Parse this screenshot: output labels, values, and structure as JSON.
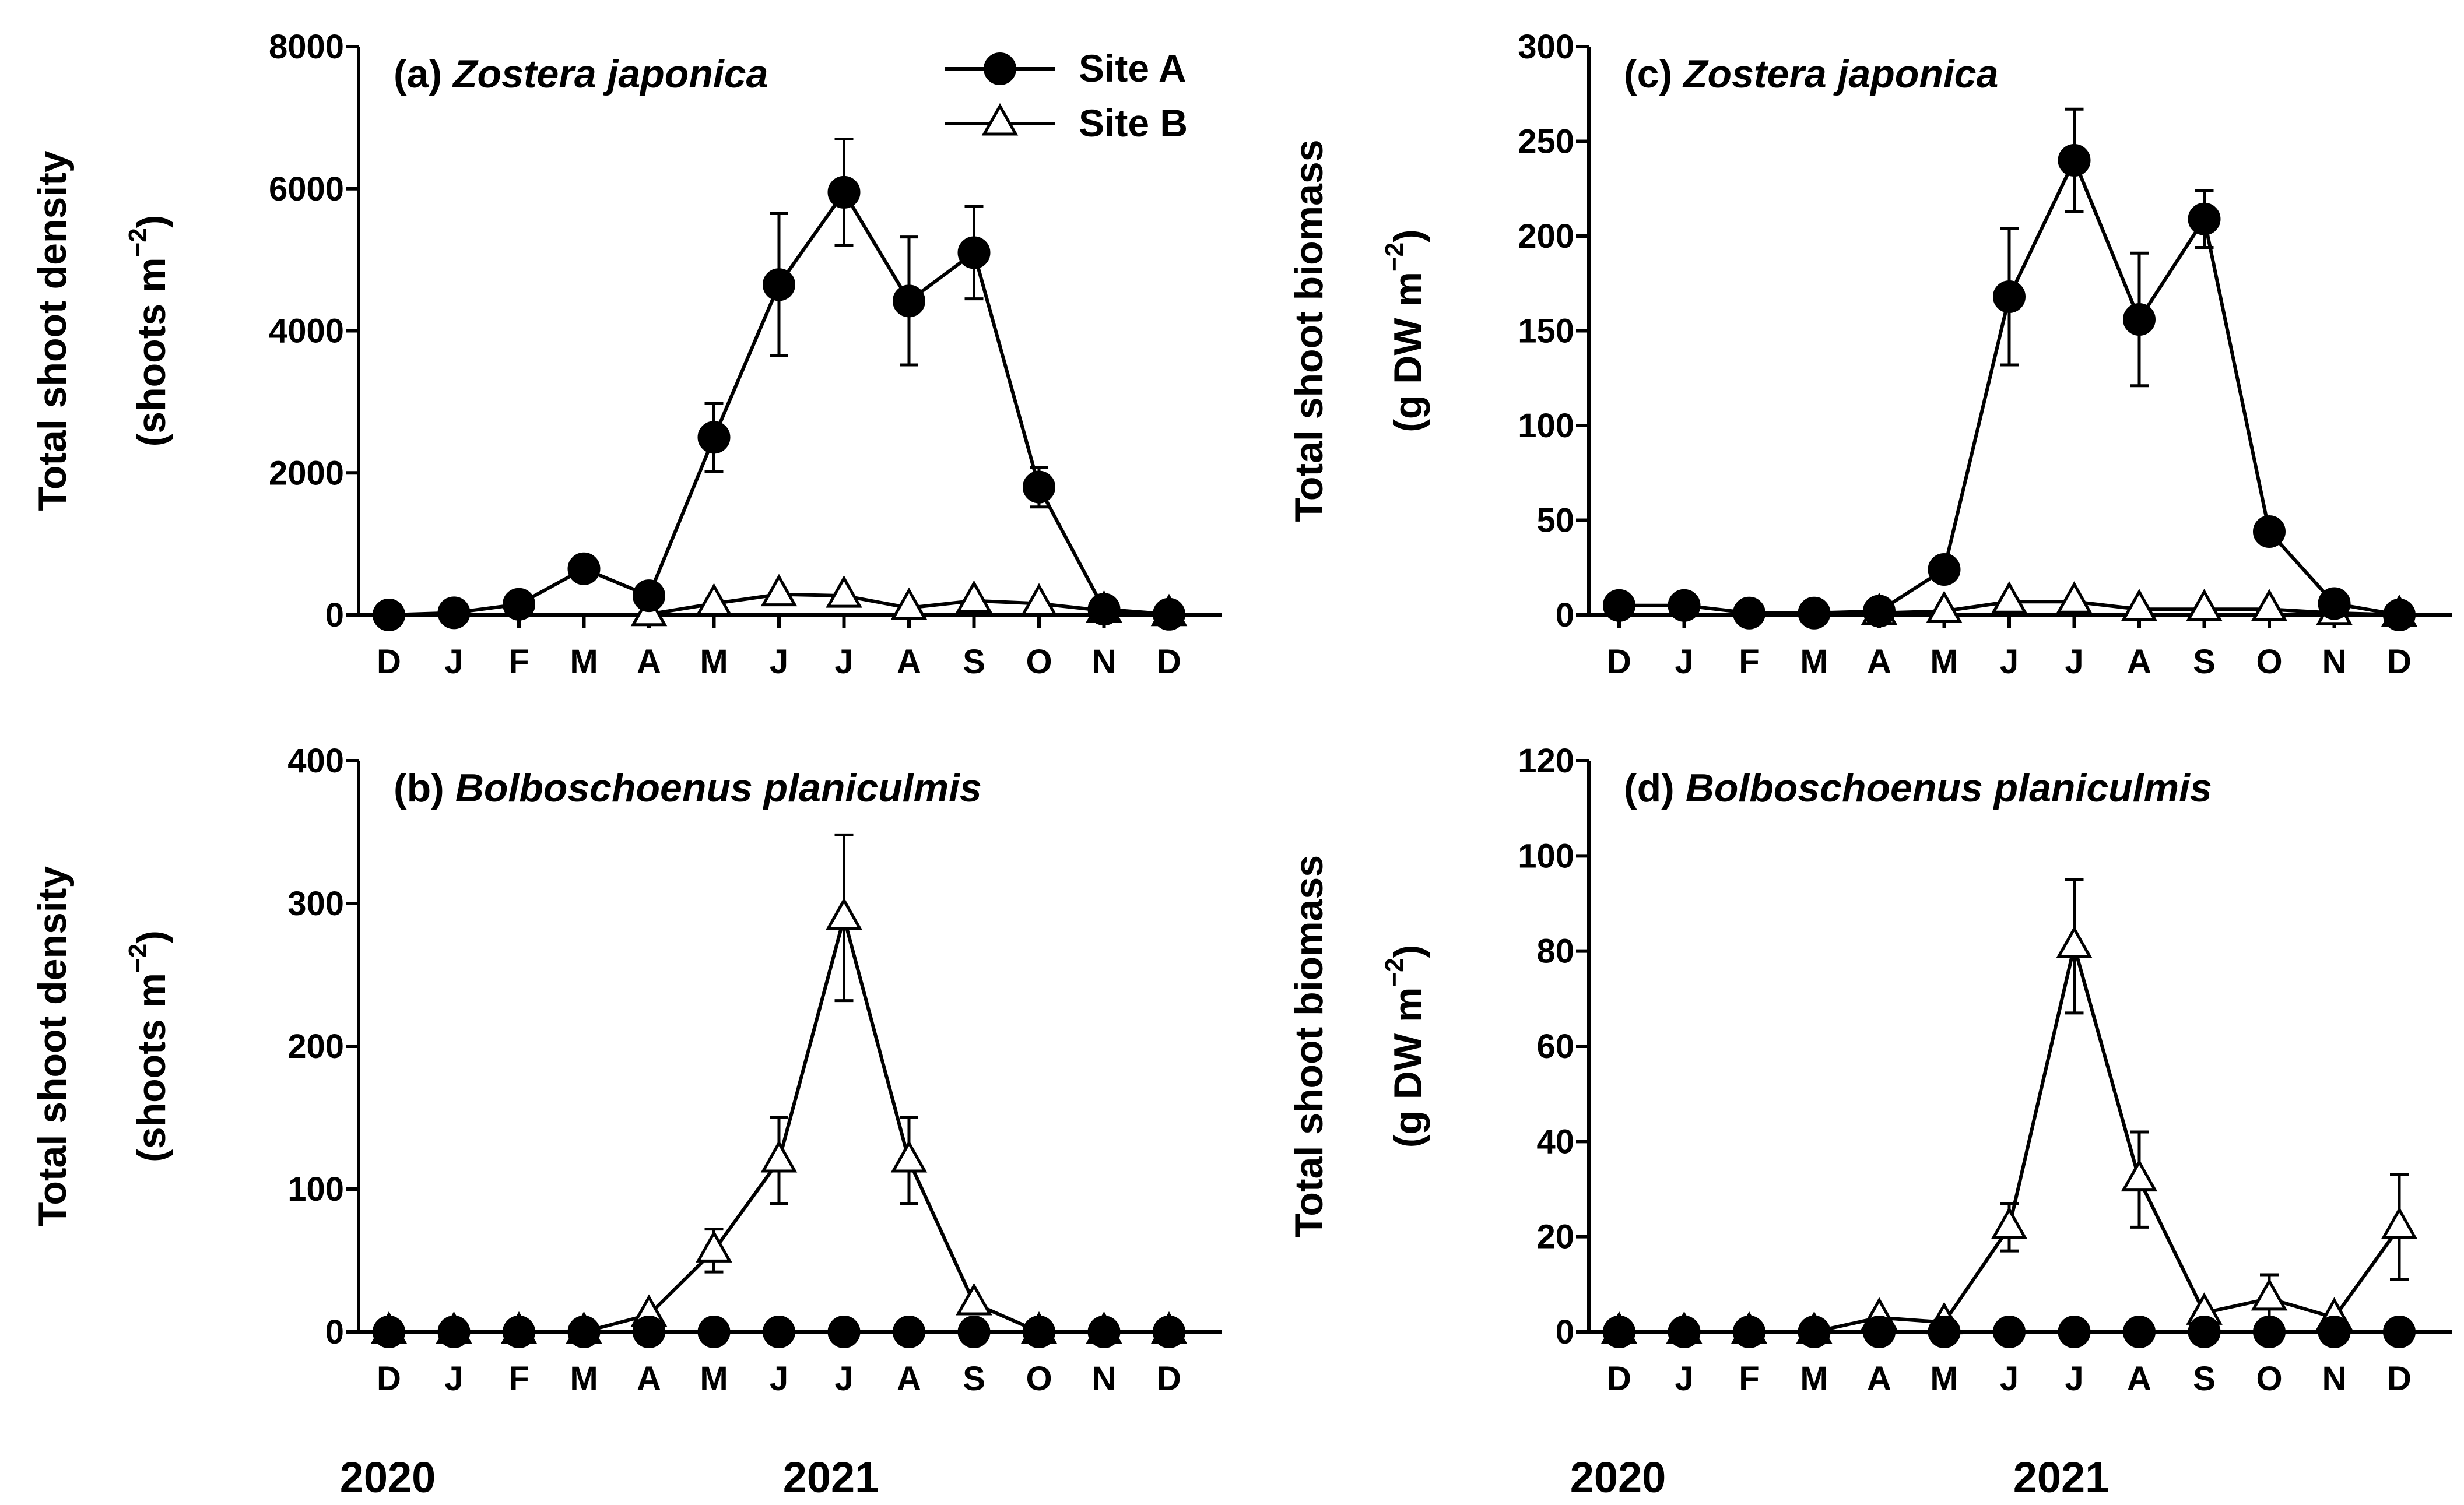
{
  "months": [
    "D",
    "J",
    "F",
    "M",
    "A",
    "M",
    "J",
    "J",
    "A",
    "S",
    "O",
    "N",
    "D"
  ],
  "years": [
    "2020",
    "2021"
  ],
  "legend": {
    "site_a": "Site A",
    "site_b": "Site B"
  },
  "chart_data": [
    {
      "id": "a",
      "type": "line",
      "panel_label": "(a) ",
      "species": "Zostera japonica",
      "ylabel_1": "Total shoot density",
      "ylabel_2_base": "(shoots m",
      "ylabel_2_sup": "−2",
      "ylabel_2_end": ")",
      "ylim": [
        0,
        8000
      ],
      "yticks": [
        0,
        2000,
        4000,
        6000,
        8000
      ],
      "series": [
        {
          "name": "Site A",
          "x": [
            0,
            1,
            2,
            3,
            4,
            5,
            6,
            7,
            8,
            9,
            10,
            11,
            12
          ],
          "values": [
            0,
            30,
            150,
            650,
            270,
            2500,
            4650,
            5950,
            4420,
            5100,
            1800,
            80,
            10
          ],
          "errors": [
            0,
            0,
            0,
            0,
            0,
            480,
            1000,
            750,
            900,
            650,
            280,
            0,
            0
          ]
        },
        {
          "name": "Site B",
          "x": [
            4,
            5,
            6,
            7,
            8,
            9,
            10,
            11,
            12
          ],
          "values": [
            10,
            160,
            290,
            270,
            100,
            200,
            160,
            60,
            10
          ],
          "errors": [
            0,
            0,
            0,
            0,
            0,
            0,
            0,
            0,
            0
          ]
        }
      ]
    },
    {
      "id": "b",
      "type": "line",
      "panel_label": "(b) ",
      "species": "Bolboschoenus planiculmis",
      "ylabel_1": "Total shoot density",
      "ylabel_2_base": "(shoots m",
      "ylabel_2_sup": "−2",
      "ylabel_2_end": ")",
      "ylim": [
        0,
        400
      ],
      "yticks": [
        0,
        100,
        200,
        300,
        400
      ],
      "series": [
        {
          "name": "Site A",
          "x": [
            0,
            1,
            2,
            3,
            4,
            5,
            6,
            7,
            8,
            9,
            10,
            11,
            12
          ],
          "values": [
            0,
            0,
            0,
            0,
            0,
            0,
            0,
            0,
            0,
            0,
            0,
            0,
            0
          ],
          "errors": [
            0,
            0,
            0,
            0,
            0,
            0,
            0,
            0,
            0,
            0,
            0,
            0,
            0
          ]
        },
        {
          "name": "Site B",
          "x": [
            0,
            1,
            2,
            3,
            4,
            5,
            6,
            7,
            8,
            9,
            10,
            11,
            12
          ],
          "values": [
            0,
            0,
            0,
            0,
            12,
            57,
            120,
            290,
            120,
            20,
            0,
            0,
            0
          ],
          "errors": [
            0,
            0,
            0,
            0,
            0,
            15,
            30,
            58,
            30,
            0,
            0,
            0,
            0
          ]
        }
      ]
    },
    {
      "id": "c",
      "type": "line",
      "panel_label": "(c) ",
      "species": "Zostera japonica",
      "ylabel_1": "Total shoot biomass",
      "ylabel_2_base": "(g DW m",
      "ylabel_2_sup": "−2",
      "ylabel_2_end": ")",
      "ylim": [
        0,
        300
      ],
      "yticks": [
        0,
        50,
        100,
        150,
        200,
        250,
        300
      ],
      "series": [
        {
          "name": "Site A",
          "x": [
            0,
            1,
            2,
            3,
            4,
            5,
            6,
            7,
            8,
            9,
            10,
            11,
            12
          ],
          "values": [
            5,
            5,
            1,
            1,
            2,
            24,
            168,
            240,
            156,
            209,
            44,
            6,
            0
          ],
          "errors": [
            0,
            0,
            0,
            0,
            0,
            0,
            36,
            27,
            35,
            15,
            0,
            0,
            0
          ]
        },
        {
          "name": "Site B",
          "x": [
            4,
            5,
            6,
            7,
            8,
            9,
            10,
            11,
            12
          ],
          "values": [
            1,
            2,
            7,
            7,
            3,
            3,
            3,
            1,
            0
          ],
          "errors": [
            0,
            0,
            0,
            0,
            0,
            0,
            0,
            0,
            0
          ]
        }
      ]
    },
    {
      "id": "d",
      "type": "line",
      "panel_label": "(d) ",
      "species": "Bolboschoenus planiculmis",
      "ylabel_1": "Total shoot biomass",
      "ylabel_2_base": "(g DW m",
      "ylabel_2_sup": "−2",
      "ylabel_2_end": ")",
      "ylim": [
        0,
        120
      ],
      "yticks": [
        0,
        20,
        40,
        60,
        80,
        100,
        120
      ],
      "series": [
        {
          "name": "Site A",
          "x": [
            0,
            1,
            2,
            3,
            4,
            5,
            6,
            7,
            8,
            9,
            10,
            11,
            12
          ],
          "values": [
            0,
            0,
            0,
            0,
            0,
            0,
            0,
            0,
            0,
            0,
            0,
            0,
            0
          ],
          "errors": [
            0,
            0,
            0,
            0,
            0,
            0,
            0,
            0,
            0,
            0,
            0,
            0,
            0
          ]
        },
        {
          "name": "Site B",
          "x": [
            0,
            1,
            2,
            3,
            4,
            5,
            6,
            7,
            8,
            9,
            10,
            11,
            12
          ],
          "values": [
            0,
            0,
            0,
            0,
            3,
            2,
            22,
            81,
            32,
            4,
            7,
            3,
            22
          ],
          "errors": [
            0,
            0,
            0,
            0,
            0,
            0,
            5,
            14,
            10,
            0,
            5,
            0,
            11
          ]
        }
      ]
    }
  ]
}
